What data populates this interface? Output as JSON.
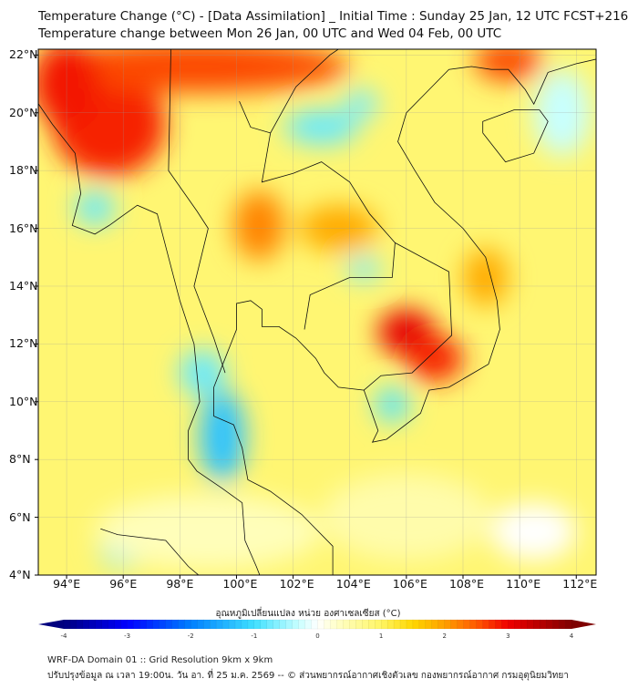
{
  "title_line1": "Temperature Change (°C) - [Data Assimilation] _ Initial Time : Sunday 25 Jan, 12 UTC FCST+216",
  "title_line2": "Temperature change between Mon 26 Jan, 00 UTC and Wed 04 Feb, 00 UTC",
  "lat_labels": [
    "4°N",
    "6°N",
    "8°N",
    "10°N",
    "12°N",
    "14°N",
    "16°N",
    "18°N",
    "20°N",
    "22°N"
  ],
  "lon_labels": [
    "94°E",
    "96°E",
    "98°E",
    "100°E",
    "102°E",
    "104°E",
    "106°E",
    "108°E",
    "110°E",
    "112°E"
  ],
  "colorbar": {
    "title": "อุณหภูมิเปลี่ยนแปลง หน่วย องศาเซลเซียส (°C)",
    "ticks": [
      "-4",
      "-3",
      "-2",
      "-1",
      "0",
      "1",
      "2",
      "3",
      "4"
    ],
    "min": -4,
    "max": 4
  },
  "footer_line1": "WRF-DA Domain 01 :: Grid Resolution 9km x 9km",
  "footer_line2": "ปรับปรุงข้อมูล ณ เวลา 19:00น. วัน อา. ที่ 25 ม.ค. 2569 -- © ส่วนพยากรณ์อากาศเชิงตัวเลข กองพยากรณ์อากาศ กรมอุตุนิยมวิทยา",
  "map_extent": {
    "lon": [
      93.0,
      112.7
    ],
    "lat": [
      4.0,
      22.2
    ]
  },
  "field": {
    "background_value": 0.9,
    "anomalies": [
      {
        "lon": 95.5,
        "lat": 19.6,
        "rx": 2.0,
        "ry": 1.8,
        "value": 2.8
      },
      {
        "lon": 98.5,
        "lat": 21.6,
        "rx": 5.5,
        "ry": 0.9,
        "value": 2.6
      },
      {
        "lon": 94.0,
        "lat": 21.0,
        "rx": 1.2,
        "ry": 1.5,
        "value": 2.9
      },
      {
        "lon": 109.6,
        "lat": 21.8,
        "rx": 1.2,
        "ry": 0.7,
        "value": 2.6
      },
      {
        "lon": 106.0,
        "lat": 12.4,
        "rx": 1.0,
        "ry": 0.8,
        "value": 3.1
      },
      {
        "lon": 107.0,
        "lat": 11.5,
        "rx": 1.0,
        "ry": 0.8,
        "value": 2.8
      },
      {
        "lon": 100.8,
        "lat": 16.1,
        "rx": 0.9,
        "ry": 1.2,
        "value": 2.2
      },
      {
        "lon": 103.6,
        "lat": 16.0,
        "rx": 1.4,
        "ry": 0.8,
        "value": 1.9
      },
      {
        "lon": 108.8,
        "lat": 14.3,
        "rx": 0.8,
        "ry": 1.0,
        "value": 1.9
      },
      {
        "lon": 95.0,
        "lat": 16.7,
        "rx": 0.7,
        "ry": 0.6,
        "value": -0.8
      },
      {
        "lon": 103.0,
        "lat": 19.5,
        "rx": 1.3,
        "ry": 0.6,
        "value": -0.8
      },
      {
        "lon": 104.4,
        "lat": 20.3,
        "rx": 0.6,
        "ry": 0.5,
        "value": -0.7
      },
      {
        "lon": 104.5,
        "lat": 14.6,
        "rx": 0.6,
        "ry": 0.4,
        "value": -0.7
      },
      {
        "lon": 99.5,
        "lat": 8.8,
        "rx": 0.8,
        "ry": 1.6,
        "value": -1.3
      },
      {
        "lon": 98.8,
        "lat": 11.0,
        "rx": 0.8,
        "ry": 0.8,
        "value": -0.8
      },
      {
        "lon": 105.5,
        "lat": 9.9,
        "rx": 0.6,
        "ry": 0.6,
        "value": -0.9
      },
      {
        "lon": 96.0,
        "lat": 4.8,
        "rx": 0.8,
        "ry": 0.5,
        "value": -0.7
      },
      {
        "lon": 111.5,
        "lat": 20.0,
        "rx": 1.0,
        "ry": 1.5,
        "value": -0.3
      },
      {
        "lon": 110.5,
        "lat": 5.5,
        "rx": 1.5,
        "ry": 1.0,
        "value": 0.0
      },
      {
        "lon": 99.0,
        "lat": 5.5,
        "rx": 4.0,
        "ry": 1.3,
        "value": 0.4
      },
      {
        "lon": 106.0,
        "lat": 6.0,
        "rx": 3.0,
        "ry": 1.5,
        "value": 0.5
      }
    ]
  }
}
